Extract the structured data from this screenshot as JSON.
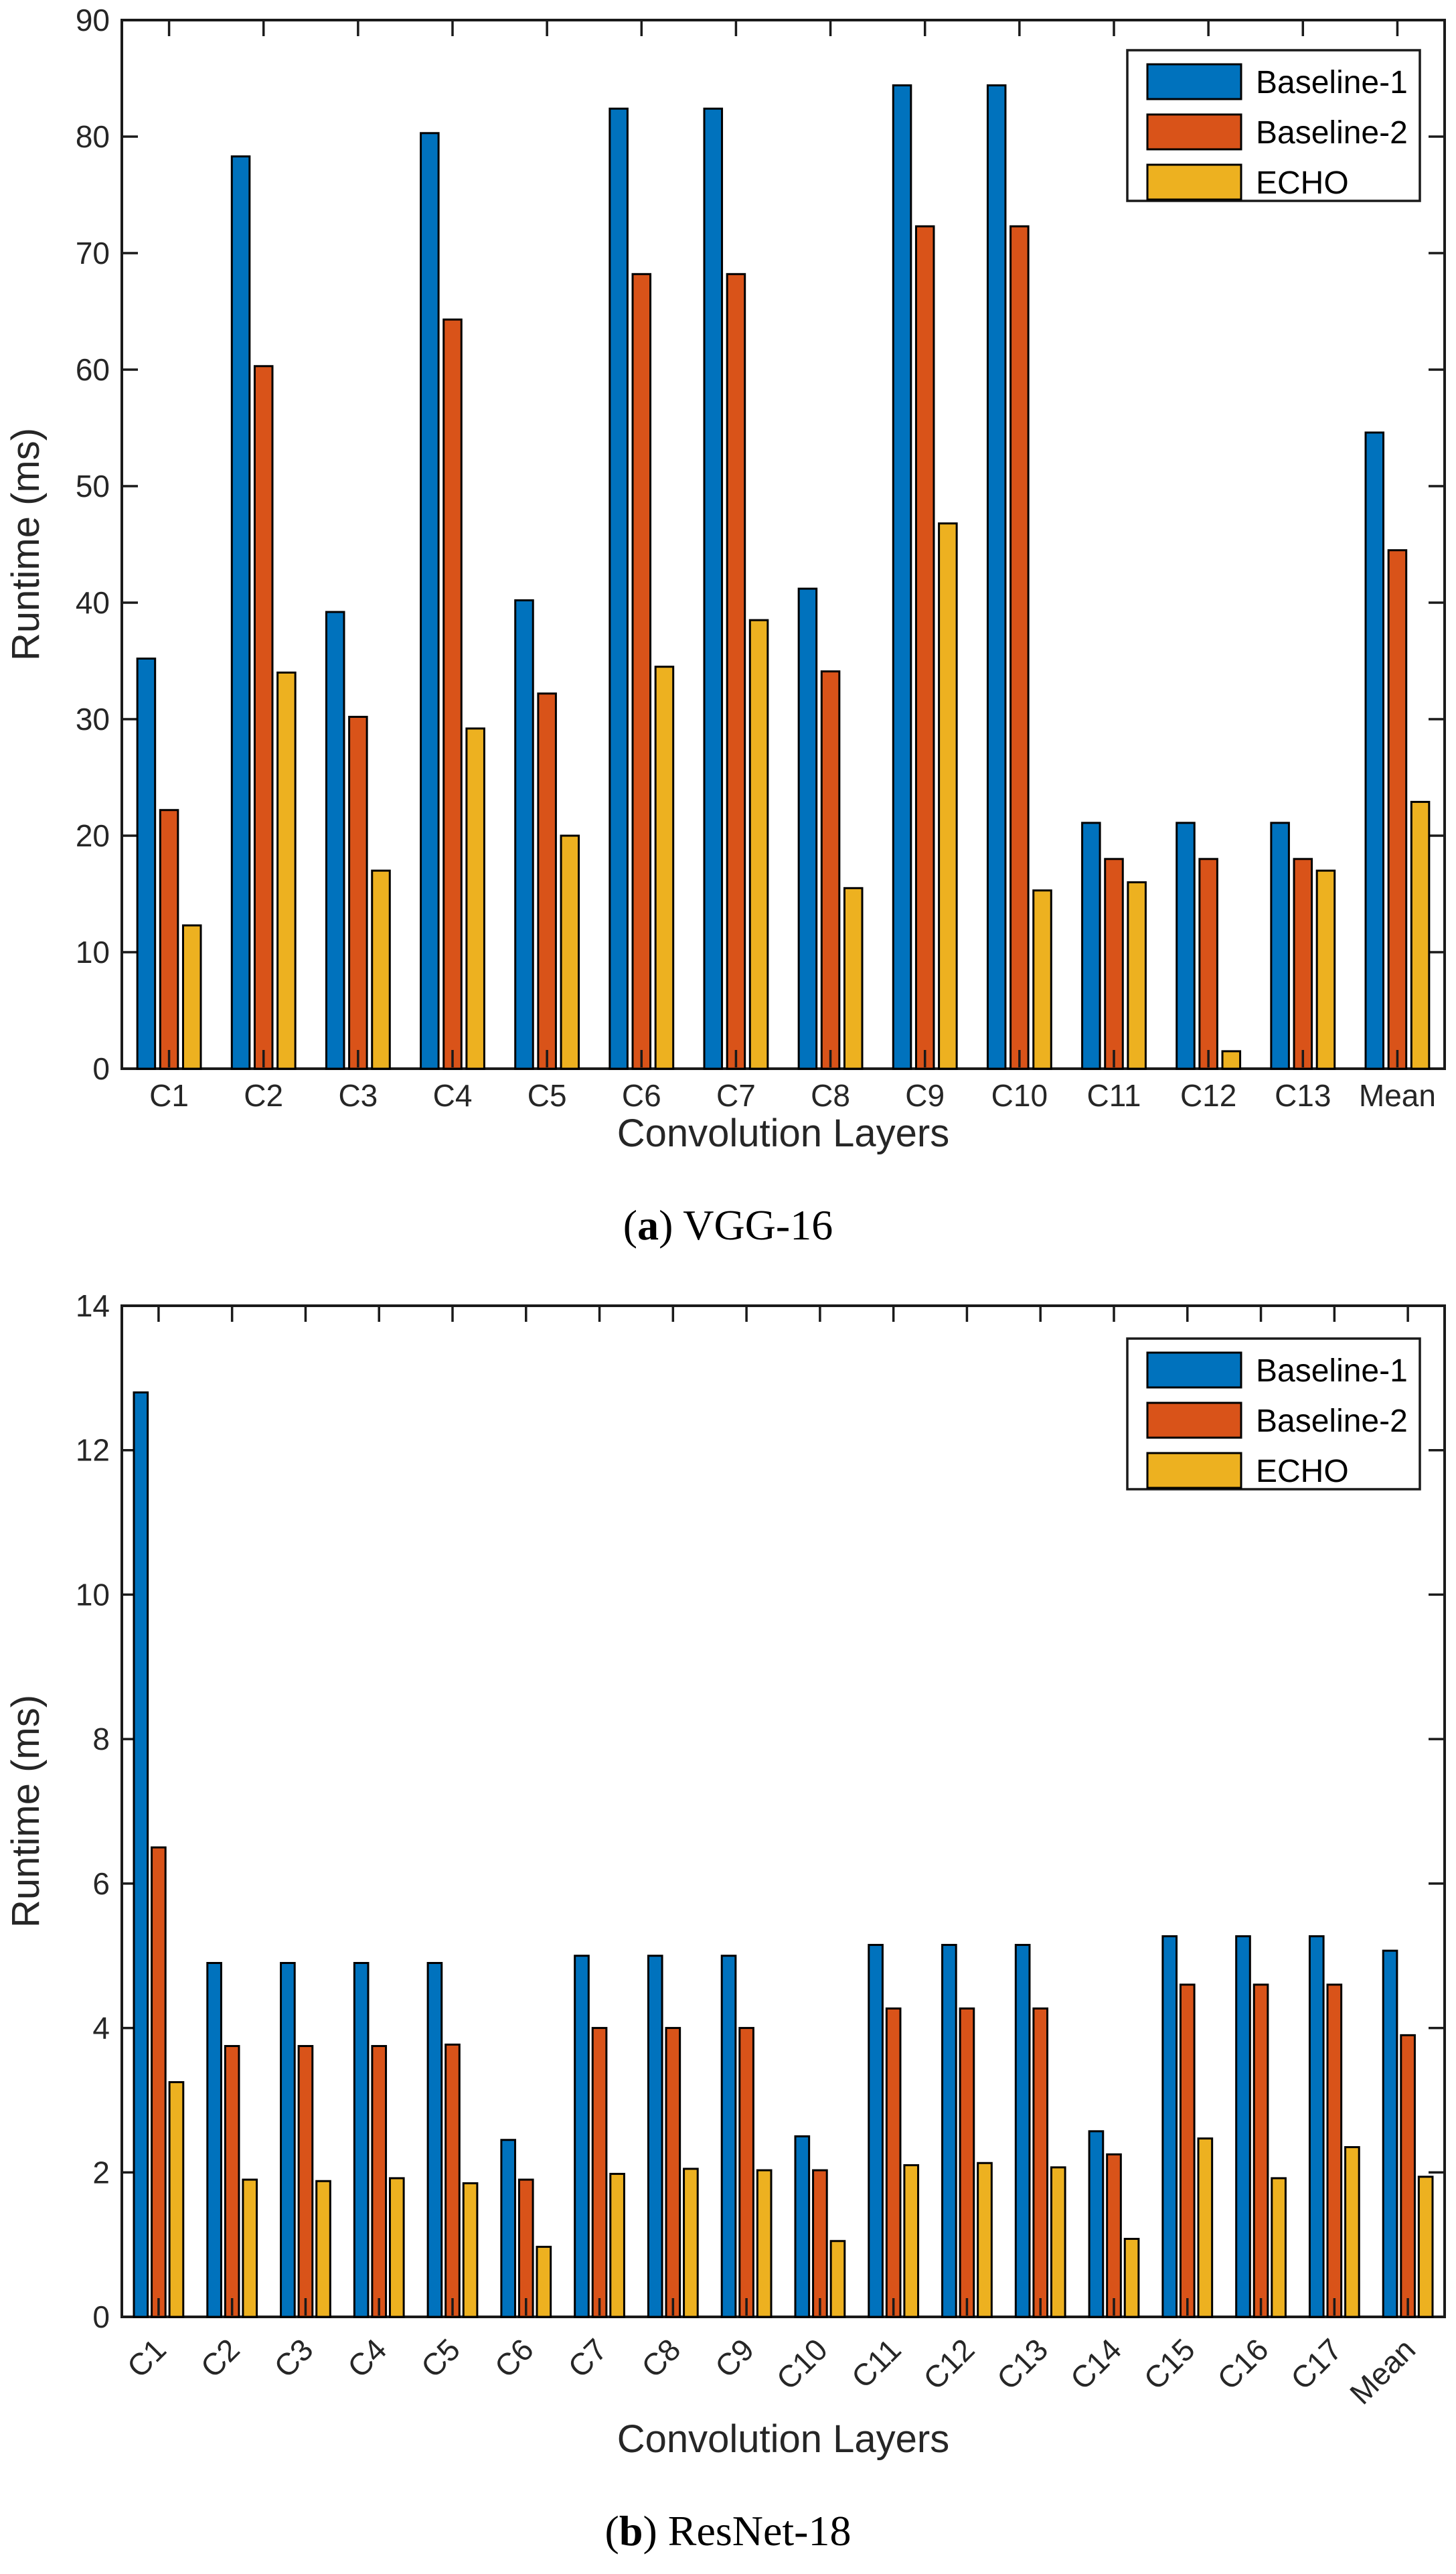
{
  "page": {
    "background": "#ffffff"
  },
  "style": {
    "axis_color": "#1a1a1a",
    "tick_label_color": "#262626",
    "bar_outline": "#000000",
    "legend_background": "#ffffff",
    "series_colors": {
      "baseline1": "#0072BD",
      "baseline2": "#D95319",
      "echo": "#EDB120"
    }
  },
  "chart_data": [
    {
      "type": "bar",
      "name": "vgg16-runtime",
      "caption": {
        "prefix": "(",
        "letter": "a",
        "rest": ") VGG-16"
      },
      "xlabel": "Convolution Layers",
      "ylabel": "Runtime (ms)",
      "ylim": [
        0,
        90
      ],
      "yticks": [
        0,
        10,
        20,
        30,
        40,
        50,
        60,
        70,
        80,
        90
      ],
      "grid": false,
      "legend_position": "top-right",
      "xtick_rotation": 0,
      "categories": [
        "C1",
        "C2",
        "C3",
        "C4",
        "C5",
        "C6",
        "C7",
        "C8",
        "C9",
        "C10",
        "C11",
        "C12",
        "C13",
        "Mean"
      ],
      "series": [
        {
          "name": "Baseline-1",
          "color": "#0072BD",
          "values": [
            35.2,
            78.3,
            39.2,
            80.3,
            40.2,
            82.4,
            82.4,
            41.2,
            84.4,
            84.4,
            21.1,
            21.1,
            21.1,
            54.6
          ]
        },
        {
          "name": "Baseline-2",
          "color": "#D95319",
          "values": [
            22.2,
            60.3,
            30.2,
            64.3,
            32.2,
            68.2,
            68.2,
            34.1,
            72.3,
            72.3,
            18.0,
            18.0,
            18.0,
            44.5
          ]
        },
        {
          "name": "ECHO",
          "color": "#EDB120",
          "values": [
            12.3,
            34.0,
            17.0,
            29.2,
            20.0,
            34.5,
            38.5,
            15.5,
            46.8,
            15.3,
            16.0,
            1.5,
            17.0,
            22.9
          ]
        }
      ]
    },
    {
      "type": "bar",
      "name": "resnet18-runtime",
      "caption": {
        "prefix": "(",
        "letter": "b",
        "rest": ") ResNet-18"
      },
      "xlabel": "Convolution Layers",
      "ylabel": "Runtime (ms)",
      "ylim": [
        0,
        14
      ],
      "yticks": [
        0,
        2,
        4,
        6,
        8,
        10,
        12,
        14
      ],
      "grid": false,
      "legend_position": "top-right",
      "xtick_rotation": 45,
      "categories": [
        "C1",
        "C2",
        "C3",
        "C4",
        "C5",
        "C6",
        "C7",
        "C8",
        "C9",
        "C10",
        "C11",
        "C12",
        "C13",
        "C14",
        "C15",
        "C16",
        "C17",
        "Mean"
      ],
      "series": [
        {
          "name": "Baseline-1",
          "color": "#0072BD",
          "values": [
            12.8,
            4.9,
            4.9,
            4.9,
            4.9,
            2.45,
            5.0,
            5.0,
            5.0,
            2.5,
            5.15,
            5.15,
            5.15,
            2.57,
            5.27,
            5.27,
            5.27,
            5.07
          ]
        },
        {
          "name": "Baseline-2",
          "color": "#D95319",
          "values": [
            6.5,
            3.75,
            3.75,
            3.75,
            3.77,
            1.9,
            4.0,
            4.0,
            4.0,
            2.03,
            4.27,
            4.27,
            4.27,
            2.25,
            4.6,
            4.6,
            4.6,
            3.9
          ]
        },
        {
          "name": "ECHO",
          "color": "#EDB120",
          "values": [
            3.25,
            1.9,
            1.88,
            1.92,
            1.85,
            0.97,
            1.98,
            2.05,
            2.03,
            1.05,
            2.1,
            2.13,
            2.07,
            1.08,
            2.47,
            1.92,
            2.35,
            1.94
          ]
        }
      ]
    }
  ],
  "legend": {
    "items": [
      "Baseline-1",
      "Baseline-2",
      "ECHO"
    ]
  }
}
